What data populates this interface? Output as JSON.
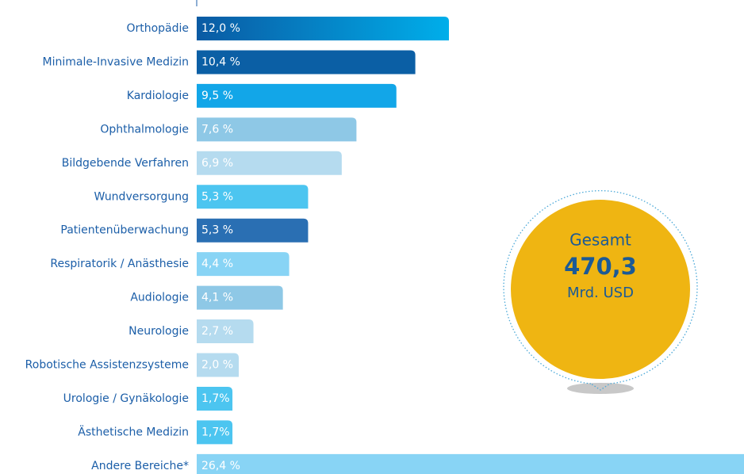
{
  "chart_data": {
    "type": "bar",
    "orientation": "horizontal",
    "categories": [
      "Orthopädie",
      "Minimale-Invasive Medizin",
      "Kardiologie",
      "Ophthalmologie",
      "Bildgebende Verfahren",
      "Wundversorgung",
      "Patientenüberwachung",
      "Respiratorik / Anästhesie",
      "Audiologie",
      "Neurologie",
      "Robotische Assistenzsysteme",
      "Urologie / Gynäkologie",
      "Ästhetische Medizin",
      "Andere Bereiche*"
    ],
    "values": [
      12.0,
      10.4,
      9.5,
      7.6,
      6.9,
      5.3,
      5.3,
      4.4,
      4.1,
      2.7,
      2.0,
      1.7,
      1.7,
      26.4
    ],
    "value_labels": [
      "12,0 %",
      "10,4 %",
      "9,5 %",
      "7,6 %",
      "6,9 %",
      "5,3 %",
      "5,3 %",
      "4,4 %",
      "4,1 %",
      "2,7 %",
      "2,0 %",
      "1,7%",
      "1,7%",
      "26,4 %"
    ],
    "colors": [
      "#1a80cc",
      "#0b5fa5",
      "#12a6e8",
      "#8ec8e6",
      "#b5dbef",
      "#4cc5f0",
      "#2a6fb3",
      "#88d4f5",
      "#8ec8e6",
      "#b5dbef",
      "#b5dbef",
      "#4cc5f0",
      "#4cc5f0",
      "#88d4f5"
    ],
    "annotations": [
      "Gesamt",
      "470,3",
      "Mrd. USD"
    ]
  }
}
